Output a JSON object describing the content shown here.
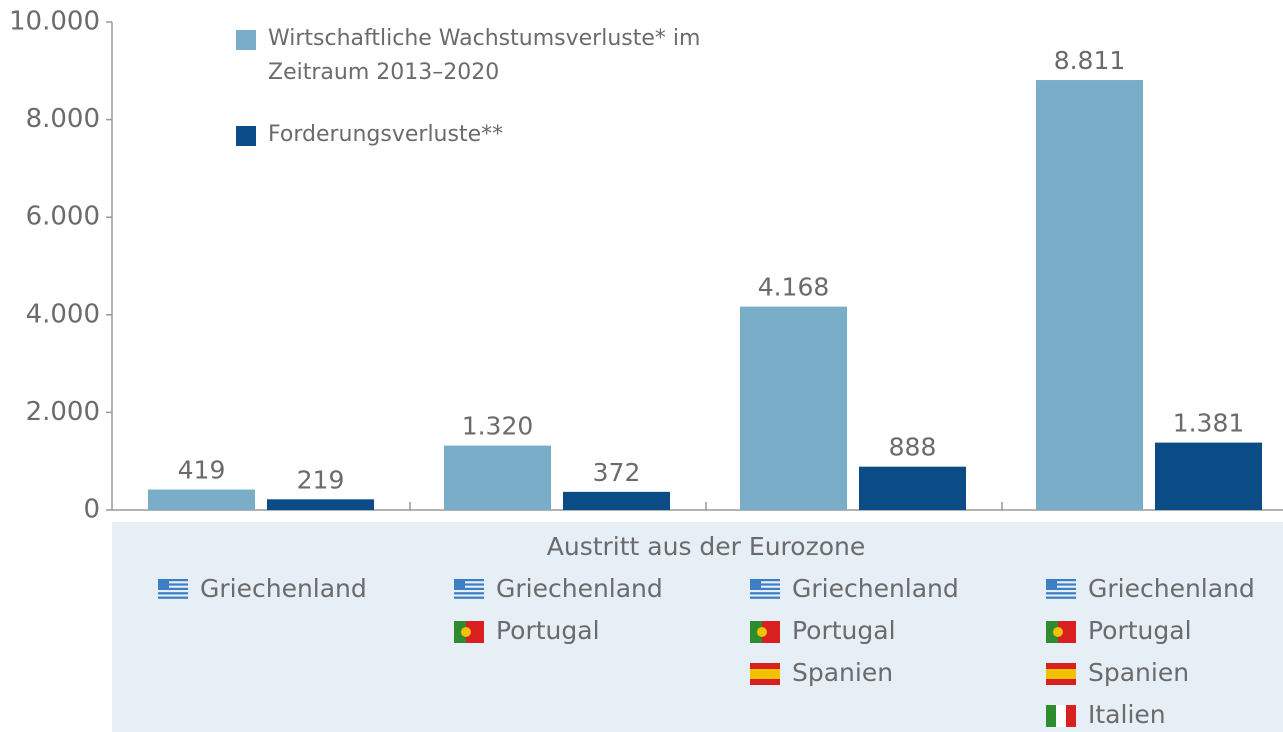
{
  "chart_data": {
    "type": "bar",
    "x_label": "Austritt aus der Eurozone",
    "categories": [
      [
        "Griechenland"
      ],
      [
        "Griechenland",
        "Portugal"
      ],
      [
        "Griechenland",
        "Portugal",
        "Spanien"
      ],
      [
        "Griechenland",
        "Portugal",
        "Spanien",
        "Italien"
      ]
    ],
    "series": [
      {
        "name": "Wirtschaftliche Wachstumsverluste* im Zeitraum 2013–2020",
        "color": "#7aaec8",
        "values": [
          419,
          1320,
          4168,
          8811
        ],
        "value_labels": [
          "419",
          "1.320",
          "4.168",
          "8.811"
        ]
      },
      {
        "name": "Forderungsverluste**",
        "color": "#0b4c86",
        "values": [
          219,
          372,
          888,
          1381
        ],
        "value_labels": [
          "219",
          "372",
          "888",
          "1.381"
        ]
      }
    ],
    "ylim": [
      0,
      10000
    ],
    "yticks": [
      0,
      {
        "value": 2000,
        "label": "2.000"
      },
      {
        "value": 4000,
        "label": "4.000"
      },
      {
        "value": 6000,
        "label": "6.000"
      },
      {
        "value": 8000,
        "label": "8.000"
      },
      {
        "value": 10000,
        "label": "10.000"
      }
    ],
    "legend": "top-left"
  }
}
